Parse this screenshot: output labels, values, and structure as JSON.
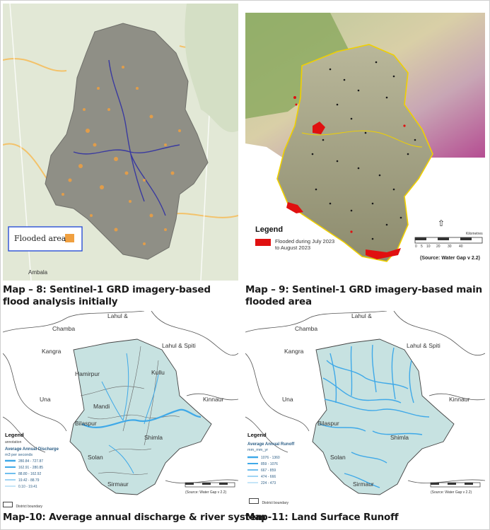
{
  "maps": [
    {
      "caption_line1": "Map – 8: Sentinel-1 GRD imagery-based",
      "caption_line2": "flood analysis initially",
      "legend_label": "Flooded area",
      "legend_color": "#f0a040",
      "place_labels": [
        "Ambala"
      ]
    },
    {
      "caption_line1": "Map – 9: Sentinel-1 GRD imagery-based main",
      "caption_line2": "flooded area",
      "legend_title": "Legend",
      "legend_item_line1": "Flooded during July 2023",
      "legend_item_line2": "to August 2023",
      "legend_color": "#e01010",
      "source": "(Source: Water Gap v 2.2)",
      "scale_ticks": [
        "0",
        "5",
        "10",
        "20",
        "30",
        "40"
      ],
      "scale_unit": "Kilometres"
    },
    {
      "caption": "Map-10: Average annual discharge & river system",
      "regions": [
        "Chamba",
        "Lahul & Spiti",
        "Kangra",
        "Hamirpur",
        "Mandi",
        "Kullu",
        "Kinnaur",
        "Una",
        "Bilaspur",
        "Shimla",
        "Solan",
        "Sirmaur"
      ],
      "region_top": "Lahul &",
      "legend_title": "Legend",
      "legend_sub": "annotation",
      "legend_heading_line1": "Average Annual Discharge",
      "legend_heading_line2": "m3 per seconds",
      "legend_classes": [
        "280.84 - 727.87",
        "162.91 - 280.85",
        "88.80 - 162.92",
        "19.42 - 88.79",
        "0.10 - 19.41"
      ],
      "boundary_label": "District boundary",
      "source": "(Source: Water Gap v 2.2)"
    },
    {
      "caption": "Map-11: Land Surface Runoff",
      "regions": [
        "Chamba",
        "Lahul & Spiti",
        "Kangra",
        "Kinnaur",
        "Una",
        "Bilaspur",
        "Shimla",
        "Solan",
        "Sirmaur"
      ],
      "region_top": "Lahul &",
      "legend_title": "Legend",
      "legend_heading_line1": "Average Annual Runoff",
      "legend_heading_line2": "mm_mm_yr",
      "legend_classes": [
        "1076 - 1360",
        "859 - 1076",
        "667 - 859",
        "474 - 666",
        "224 - 473"
      ],
      "boundary_label": "District boundary",
      "source": "(Source: Water Gap v 2.2)"
    }
  ],
  "colors": {
    "basin_gray": "#8f8f86",
    "flood_orange": "#f0a040",
    "flood_red": "#e01010",
    "discharge_fill": "#c7e2e1",
    "river_blue": "#3fa9e8"
  }
}
